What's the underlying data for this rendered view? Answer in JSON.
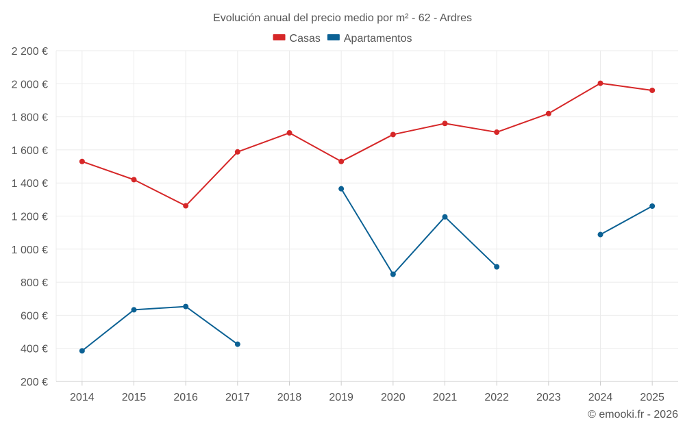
{
  "chart_data": {
    "type": "line",
    "title": "Evolución anual del precio medio por m² - 62 - Ardres",
    "categories": [
      "2014",
      "2015",
      "2016",
      "2017",
      "2018",
      "2019",
      "2020",
      "2021",
      "2022",
      "2023",
      "2024",
      "2025"
    ],
    "ylim": [
      200,
      2200
    ],
    "yticks": [
      200,
      400,
      600,
      800,
      1000,
      1200,
      1400,
      1600,
      1800,
      2000,
      2200
    ],
    "ytick_labels": [
      "200 €",
      "400 €",
      "600 €",
      "800 €",
      "1 000 €",
      "1 200 €",
      "1 400 €",
      "1 600 €",
      "1 800 €",
      "2 000 €",
      "2 200 €"
    ],
    "grid": true,
    "legend_position": "top-center",
    "series": [
      {
        "name": "Casas",
        "color": "#d62728",
        "values": [
          1530,
          1420,
          1262,
          1588,
          1703,
          1530,
          1693,
          1760,
          1707,
          1820,
          2003,
          1960
        ]
      },
      {
        "name": "Apartamentos",
        "color": "#0b6194",
        "values": [
          385,
          633,
          653,
          425,
          null,
          1365,
          848,
          1195,
          893,
          null,
          1088,
          1260
        ]
      }
    ]
  },
  "credit": "© emooki.fr - 2026"
}
